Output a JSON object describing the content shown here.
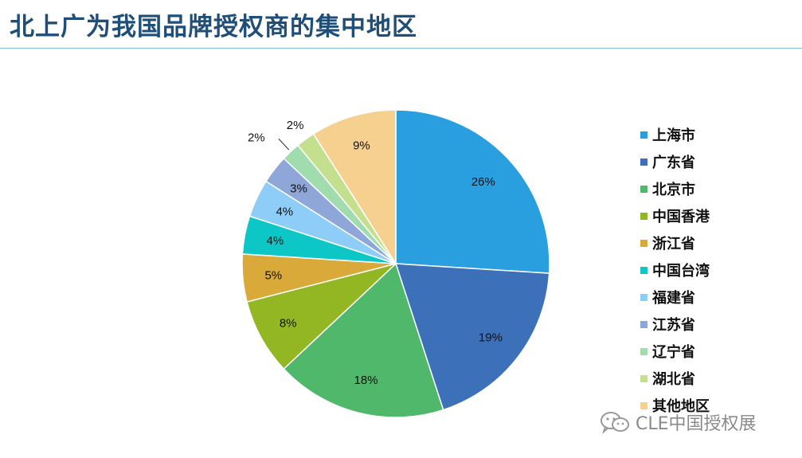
{
  "page_title": "北上广为我国品牌授权商的集中地区",
  "watermark": {
    "icon": "wechat-icon",
    "text": "CLE中国授权展"
  },
  "chart_data": {
    "type": "pie",
    "title": "",
    "start_angle_deg": 0,
    "direction": "clockwise",
    "legend_position": "right",
    "slices": [
      {
        "label": "上海市",
        "value": 26,
        "display": "26%",
        "color": "#2a9fe0"
      },
      {
        "label": "广东省",
        "value": 19,
        "display": "19%",
        "color": "#3c70b8"
      },
      {
        "label": "北京市",
        "value": 18,
        "display": "18%",
        "color": "#4fb86a"
      },
      {
        "label": "中国香港",
        "value": 8,
        "display": "8%",
        "color": "#93b623"
      },
      {
        "label": "浙江省",
        "value": 5,
        "display": "5%",
        "color": "#d9a93a"
      },
      {
        "label": "中国台湾",
        "value": 4,
        "display": "4%",
        "color": "#0dc6c6"
      },
      {
        "label": "福建省",
        "value": 4,
        "display": "4%",
        "color": "#8ecdf7"
      },
      {
        "label": "江苏省",
        "value": 3,
        "display": "3%",
        "color": "#8fa6d9"
      },
      {
        "label": "辽宁省",
        "value": 2,
        "display": "2%",
        "color": "#a1dcae"
      },
      {
        "label": "湖北省",
        "value": 2,
        "display": "2%",
        "color": "#c4e08f"
      },
      {
        "label": "其他地区",
        "value": 9,
        "display": "9%",
        "color": "#f6d08e"
      }
    ]
  }
}
